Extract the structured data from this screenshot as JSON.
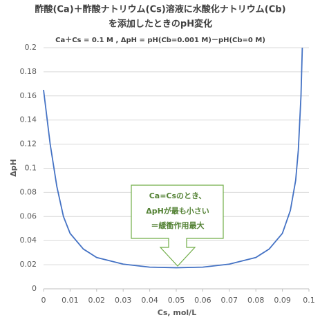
{
  "chart_data": {
    "type": "line",
    "title": [
      "酢酸(Ca)＋酢酸ナトリウム(Cs)溶液に水酸化ナトリウム(Cb)",
      "を添加したときのpH変化"
    ],
    "subtitle": "Ca＋Cs = 0.1 M , ΔpH = pH(Cb=0.001 M)－pH(Cb=0 M)",
    "xlabel": "Cs, mol/L",
    "ylabel": "ΔpH",
    "x": [
      0,
      0.0025,
      0.005,
      0.0075,
      0.01,
      0.015,
      0.02,
      0.03,
      0.04,
      0.05,
      0.06,
      0.07,
      0.08,
      0.085,
      0.09,
      0.093,
      0.095,
      0.096,
      0.097,
      0.0975
    ],
    "series": [
      {
        "color": "#4472c4",
        "values": [
          0.165,
          0.12,
          0.085,
          0.06,
          0.046,
          0.033,
          0.026,
          0.0205,
          0.018,
          0.0175,
          0.018,
          0.0205,
          0.026,
          0.033,
          0.046,
          0.065,
          0.09,
          0.115,
          0.16,
          0.2
        ]
      }
    ],
    "xlim": [
      0,
      0.1
    ],
    "xticks": [
      0,
      0.01,
      0.02,
      0.03,
      0.04,
      0.05,
      0.06,
      0.07,
      0.08,
      0.09,
      0.1
    ],
    "ylim": [
      0,
      0.2
    ],
    "yticks": [
      0,
      0.02,
      0.04,
      0.06,
      0.08,
      0.1,
      0.12,
      0.14,
      0.16,
      0.18,
      0.2
    ],
    "grid": true,
    "annotation": [
      "Ca=Csのとき、",
      "ΔpHが最も小さい",
      "＝緩衝作用最大"
    ]
  }
}
